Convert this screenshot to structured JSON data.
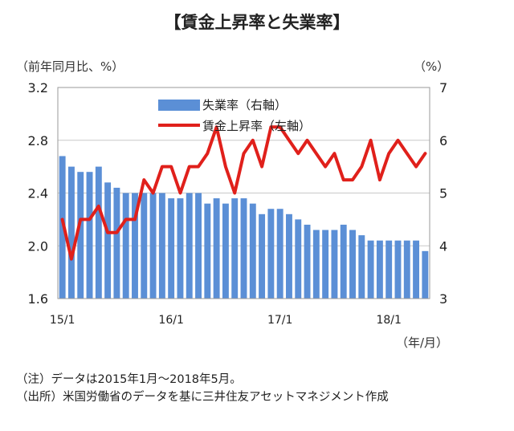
{
  "title": "【賃金上昇率と失業率】",
  "left_axis_unit": "（前年同月比、%）",
  "right_axis_unit": "（%）",
  "x_axis_unit": "（年/月）",
  "notes": [
    "（注）データは2015年1月～2018年5月。",
    "（出所）米国労働省のデータを基に三井住友アセットマネジメント作成"
  ],
  "colors": {
    "bars": "#5b8fd6",
    "line": "#e0201b",
    "grid": "#c8c8c8"
  },
  "chart_data": {
    "type": "bar+line",
    "x_tick_labels": [
      "15/1",
      "16/1",
      "17/1",
      "18/1"
    ],
    "x_tick_indices": [
      0,
      12,
      24,
      36
    ],
    "left_axis": {
      "ylim": [
        1.6,
        3.2
      ],
      "ticks": [
        "1.6",
        "2.0",
        "2.4",
        "2.8",
        "3.2"
      ]
    },
    "right_axis": {
      "ylim": [
        3,
        7
      ],
      "ticks": [
        "3",
        "4",
        "5",
        "6",
        "7"
      ]
    },
    "series": [
      {
        "name": "失業率（右軸）",
        "type": "bar",
        "axis": "right",
        "values": [
          5.7,
          5.5,
          5.4,
          5.4,
          5.5,
          5.2,
          5.1,
          5.0,
          5.0,
          5.0,
          5.0,
          5.0,
          4.9,
          4.9,
          5.0,
          5.0,
          4.8,
          4.9,
          4.8,
          4.9,
          4.9,
          4.8,
          4.6,
          4.7,
          4.7,
          4.6,
          4.5,
          4.4,
          4.3,
          4.3,
          4.3,
          4.4,
          4.3,
          4.2,
          4.1,
          4.1,
          4.1,
          4.1,
          4.1,
          4.1,
          3.9
        ]
      },
      {
        "name": "賃金上昇率（左軸）",
        "type": "line",
        "axis": "left",
        "values": [
          2.2,
          1.9,
          2.2,
          2.2,
          2.3,
          2.1,
          2.1,
          2.2,
          2.2,
          2.5,
          2.4,
          2.6,
          2.6,
          2.4,
          2.6,
          2.6,
          2.7,
          2.9,
          2.6,
          2.4,
          2.7,
          2.8,
          2.6,
          2.9,
          2.9,
          2.8,
          2.7,
          2.8,
          2.7,
          2.6,
          2.7,
          2.5,
          2.5,
          2.6,
          2.8,
          2.5,
          2.7,
          2.8,
          2.7,
          2.6,
          2.7
        ]
      }
    ]
  }
}
